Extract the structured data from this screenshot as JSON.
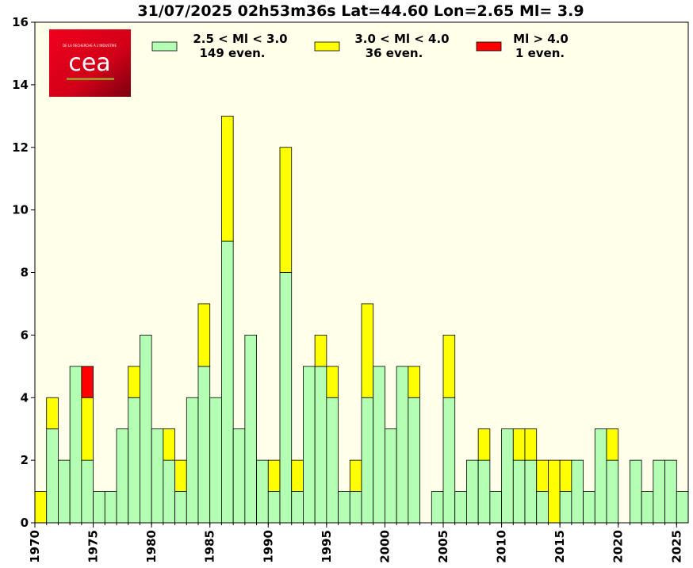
{
  "chart_data": {
    "type": "bar",
    "stacked": true,
    "title": "31/07/2025 02h53m36s Lat=44.60 Lon=2.65 Ml= 3.9",
    "xlabel": "",
    "ylabel": "",
    "xlim": [
      1970,
      2026
    ],
    "ylim": [
      0,
      16
    ],
    "yticks": [
      0,
      2,
      4,
      6,
      8,
      10,
      12,
      14,
      16
    ],
    "xticks": [
      "1970",
      "1975",
      "1980",
      "1985",
      "1990",
      "1995",
      "2000",
      "2005",
      "2010",
      "2015",
      "2020",
      "2025"
    ],
    "years": [
      1970,
      1971,
      1972,
      1973,
      1974,
      1975,
      1976,
      1977,
      1978,
      1979,
      1980,
      1981,
      1982,
      1983,
      1984,
      1985,
      1986,
      1987,
      1988,
      1989,
      1990,
      1991,
      1992,
      1993,
      1994,
      1995,
      1996,
      1997,
      1998,
      1999,
      2000,
      2001,
      2002,
      2003,
      2004,
      2005,
      2006,
      2007,
      2008,
      2009,
      2010,
      2011,
      2012,
      2013,
      2014,
      2015,
      2016,
      2017,
      2018,
      2019,
      2020,
      2021,
      2022,
      2023,
      2024,
      2025
    ],
    "series": [
      {
        "name": "2.5 < Ml < 3.0",
        "color": "#b3ffb3",
        "values": [
          0,
          3,
          2,
          5,
          2,
          1,
          1,
          3,
          4,
          6,
          3,
          2,
          1,
          4,
          5,
          4,
          9,
          3,
          6,
          2,
          1,
          8,
          1,
          5,
          5,
          4,
          1,
          1,
          4,
          5,
          3,
          5,
          4,
          0,
          1,
          4,
          1,
          2,
          2,
          1,
          3,
          2,
          2,
          1,
          0,
          1,
          2,
          1,
          3,
          2,
          0,
          2,
          1,
          2,
          2,
          1
        ]
      },
      {
        "name": "3.0 < Ml < 4.0",
        "color": "#ffff00",
        "values": [
          1,
          1,
          0,
          0,
          2,
          0,
          0,
          0,
          1,
          0,
          0,
          1,
          1,
          0,
          2,
          0,
          4,
          0,
          0,
          0,
          1,
          4,
          1,
          0,
          1,
          1,
          0,
          1,
          3,
          0,
          0,
          0,
          1,
          0,
          0,
          2,
          0,
          0,
          1,
          0,
          0,
          1,
          1,
          1,
          2,
          1,
          0,
          0,
          0,
          1,
          0,
          0,
          0,
          0,
          0,
          0
        ]
      },
      {
        "name": "Ml > 4.0",
        "color": "#ff0000",
        "values": [
          0,
          0,
          0,
          0,
          1,
          0,
          0,
          0,
          0,
          0,
          0,
          0,
          0,
          0,
          0,
          0,
          0,
          0,
          0,
          0,
          0,
          0,
          0,
          0,
          0,
          0,
          0,
          0,
          0,
          0,
          0,
          0,
          0,
          0,
          0,
          0,
          0,
          0,
          0,
          0,
          0,
          0,
          0,
          0,
          0,
          0,
          0,
          0,
          0,
          0,
          0,
          0,
          0,
          0,
          0,
          0
        ]
      }
    ],
    "legend": [
      {
        "label_line1": "2.5 < Ml <  3.0",
        "label_line2": "149 even.",
        "color": "#b3ffb3"
      },
      {
        "label_line1": "3.0 < Ml <  4.0",
        "label_line2": "36 even.",
        "color": "#ffff00"
      },
      {
        "label_line1": "Ml >  4.0",
        "label_line2": "1 even.",
        "color": "#ff0000"
      }
    ],
    "legend_position": "top",
    "grid": false,
    "plot_background": "#ffffea"
  },
  "logo": {
    "text": "cea",
    "tagline": "DE LA RECHERCHE À L'INDUSTRIE",
    "background": "#e1001a"
  }
}
